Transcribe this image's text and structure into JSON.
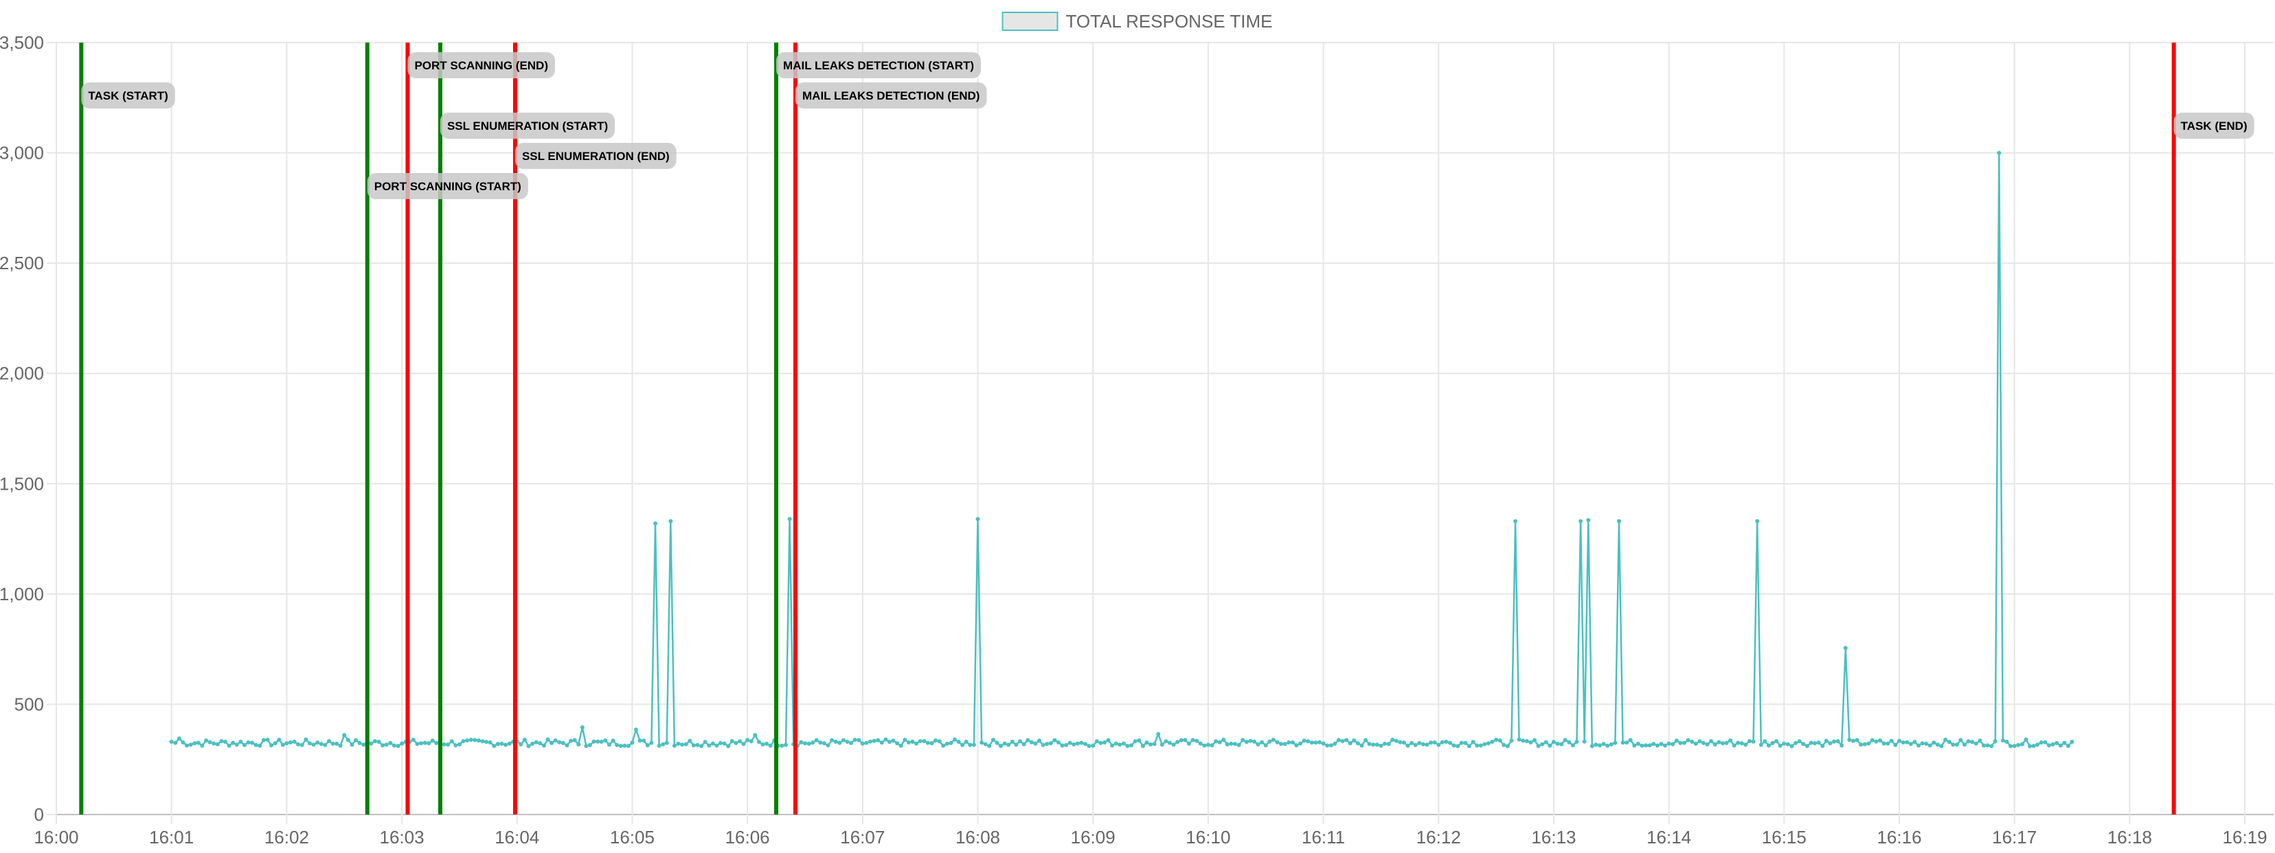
{
  "chart_data": {
    "type": "line",
    "legend": {
      "placement": "top-center",
      "label": "TOTAL RESPONSE TIME",
      "color": "#4BC0C0"
    },
    "x_axis": {
      "type": "time",
      "unit": "minute",
      "range": [
        "16:00:00",
        "16:19:15"
      ],
      "tick_labels": [
        "16:00",
        "16:01",
        "16:02",
        "16:03",
        "16:04",
        "16:05",
        "16:06",
        "16:07",
        "16:08",
        "16:09",
        "16:10",
        "16:11",
        "16:12",
        "16:13",
        "16:14",
        "16:15",
        "16:16",
        "16:17",
        "16:18",
        "16:19"
      ]
    },
    "y_axis": {
      "range": [
        0,
        3500
      ],
      "ticks": [
        0,
        500,
        1000,
        1500,
        2000,
        2500,
        3000,
        3500
      ],
      "tick_labels": [
        "0",
        "500",
        "1,000",
        "1,500",
        "2,000",
        "2,500",
        "3,000",
        "3,500"
      ]
    },
    "grid": true,
    "series": [
      {
        "name": "TOTAL RESPONSE TIME",
        "color": "#4BC0C0",
        "start": "16:01:00",
        "end": "16:17:30",
        "baseline": 325,
        "points": [
          {
            "t": "16:01:00",
            "y": 330
          },
          {
            "t": "16:01:05",
            "y": 345
          },
          {
            "t": "16:02:30",
            "y": 360
          },
          {
            "t": "16:04:35",
            "y": 395
          },
          {
            "t": "16:05:03",
            "y": 385
          },
          {
            "t": "16:05:13",
            "y": 1320
          },
          {
            "t": "16:05:20",
            "y": 1330
          },
          {
            "t": "16:06:04",
            "y": 360
          },
          {
            "t": "16:06:22",
            "y": 1340
          },
          {
            "t": "16:08:00",
            "y": 1340
          },
          {
            "t": "16:09:35",
            "y": 365
          },
          {
            "t": "16:12:40",
            "y": 1330
          },
          {
            "t": "16:13:15",
            "y": 1330
          },
          {
            "t": "16:13:18",
            "y": 1335
          },
          {
            "t": "16:13:35",
            "y": 1330
          },
          {
            "t": "16:14:47",
            "y": 1330
          },
          {
            "t": "16:15:32",
            "y": 755
          },
          {
            "t": "16:16:53",
            "y": 3000
          },
          {
            "t": "16:17:30",
            "y": 330
          }
        ]
      }
    ],
    "annotations": [
      {
        "label": "TASK (START)",
        "time": "16:00:13",
        "color": "#008000",
        "level": 2
      },
      {
        "label": "PORT SCANNING (START)",
        "time": "16:02:42",
        "color": "#008000",
        "level": 5
      },
      {
        "label": "PORT SCANNING (END)",
        "time": "16:03:03",
        "color": "#FF0000",
        "level": 1
      },
      {
        "label": "SSL ENUMERATION (START)",
        "time": "16:03:20",
        "color": "#008000",
        "level": 3
      },
      {
        "label": "SSL ENUMERATION (END)",
        "time": "16:03:59",
        "color": "#FF0000",
        "level": 4
      },
      {
        "label": "MAIL LEAKS DETECTION (START)",
        "time": "16:06:15",
        "color": "#008000",
        "level": 1
      },
      {
        "label": "MAIL LEAKS DETECTION (END)",
        "time": "16:06:25",
        "color": "#FF0000",
        "level": 2
      },
      {
        "label": "TASK (END)",
        "time": "16:18:23",
        "color": "#FF0000",
        "level": 3
      }
    ]
  }
}
